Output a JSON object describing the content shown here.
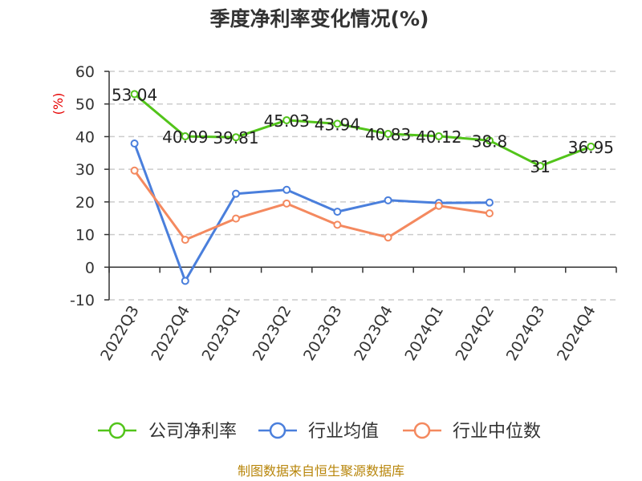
{
  "chart_data": {
    "type": "line",
    "title": "季度净利率变化情况(%)",
    "ylabel": "(%)",
    "xlabel": "",
    "categories": [
      "2022Q3",
      "2022Q4",
      "2023Q1",
      "2023Q2",
      "2023Q3",
      "2023Q4",
      "2024Q1",
      "2024Q2",
      "2024Q3",
      "2024Q4"
    ],
    "ylim": [
      -10,
      60
    ],
    "yticks": [
      -10,
      0,
      10,
      20,
      30,
      40,
      50,
      60
    ],
    "grid": true,
    "legend_position": "bottom",
    "series": [
      {
        "name": "公司净利率",
        "color": "#52c41a",
        "values": [
          53.04,
          40.09,
          39.81,
          45.03,
          43.94,
          40.83,
          40.12,
          38.8,
          31,
          36.95
        ],
        "labels": [
          "53.04",
          "40.09",
          "39.81",
          "45.03",
          "43.94",
          "40.83",
          "40.12",
          "38.8",
          "31",
          "36.95"
        ]
      },
      {
        "name": "行业均值",
        "color": "#4a7fdc",
        "values": [
          37.9,
          -4.2,
          22.5,
          23.7,
          17.0,
          20.5,
          19.7,
          19.8,
          null,
          null
        ]
      },
      {
        "name": "行业中位数",
        "color": "#f4895f",
        "values": [
          29.6,
          8.4,
          14.9,
          19.5,
          13.0,
          9.1,
          18.8,
          16.5,
          null,
          null
        ]
      }
    ]
  },
  "source_note": "制图数据来自恒生聚源数据库"
}
